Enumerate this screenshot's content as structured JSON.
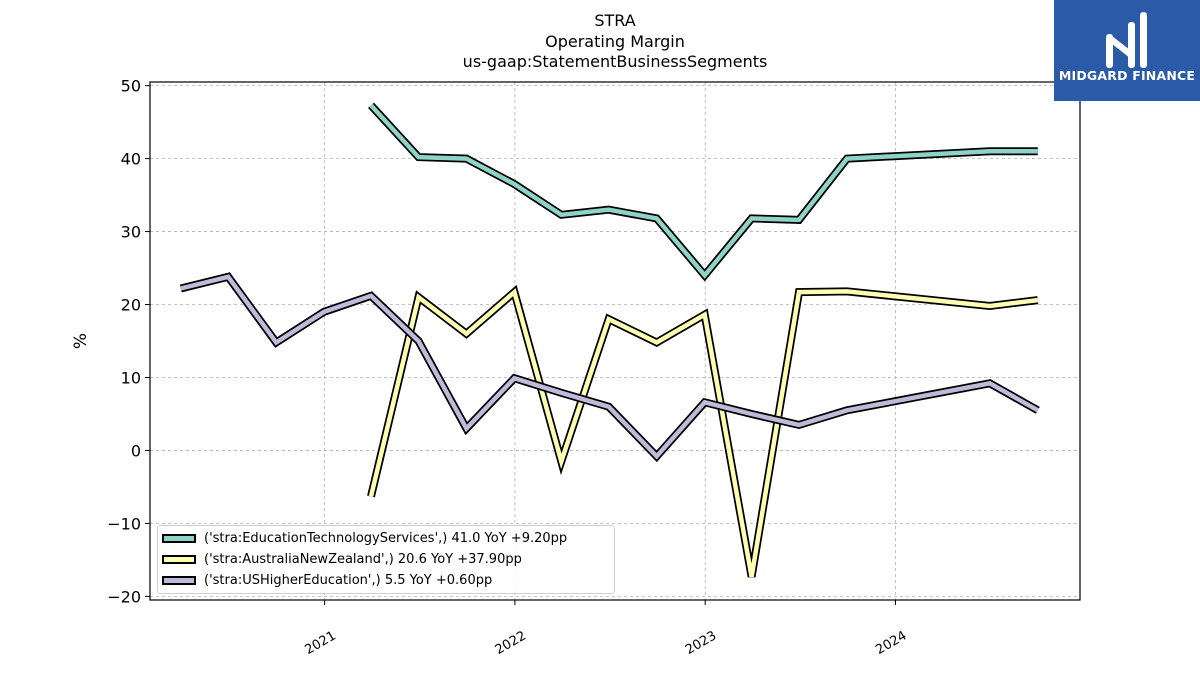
{
  "chart_data": {
    "type": "line",
    "title_lines": [
      "STRA",
      "Operating Margin",
      "us-gaap:StatementBusinessSegments"
    ],
    "ylabel": "%",
    "xlabel": "",
    "ylim": [
      -20.5,
      50.5
    ],
    "yticks": [
      -20,
      -10,
      0,
      10,
      20,
      30,
      40,
      50
    ],
    "ytick_labels": [
      "−20",
      "−10",
      "0",
      "10",
      "20",
      "30",
      "40",
      "50"
    ],
    "xlim": [
      "2020-02-01",
      "2024-12-20"
    ],
    "xticks": [
      "2021-01-01",
      "2022-01-01",
      "2023-01-01",
      "2024-01-01"
    ],
    "xtick_labels": [
      "2021",
      "2022",
      "2023",
      "2024"
    ],
    "grid": true,
    "legend_placement": "lower-left",
    "series": [
      {
        "name": "('stra:EducationTechnologyServices',) 41.0 YoY +9.20pp",
        "color": "#8dd3c7",
        "x": [
          "2021-03-31",
          "2021-06-30",
          "2021-09-30",
          "2021-12-31",
          "2022-03-31",
          "2022-06-30",
          "2022-09-30",
          "2022-12-31",
          "2023-03-31",
          "2023-06-30",
          "2023-09-30",
          "2024-06-30",
          "2024-09-30"
        ],
        "y": [
          47.3,
          40.2,
          40.0,
          36.5,
          32.3,
          33.0,
          31.8,
          24.0,
          31.8,
          31.6,
          40.0,
          41.0,
          41.0
        ]
      },
      {
        "name": "('stra:AustraliaNewZealand',) 20.6 YoY +37.90pp",
        "color": "#ffffb3",
        "x": [
          "2021-03-31",
          "2021-06-30",
          "2021-09-30",
          "2021-12-31",
          "2022-03-31",
          "2022-06-30",
          "2022-09-30",
          "2022-12-31",
          "2023-03-31",
          "2023-06-30",
          "2023-09-30",
          "2024-06-30",
          "2024-09-30"
        ],
        "y": [
          -6.3,
          21.0,
          16.0,
          21.7,
          -1.5,
          18.0,
          14.8,
          18.6,
          -17.3,
          21.7,
          21.8,
          19.8,
          20.6
        ]
      },
      {
        "name": "('stra:USHigherEducation',) 5.5 YoY +0.60pp",
        "color": "#bebada",
        "x": [
          "2020-03-31",
          "2020-06-30",
          "2020-09-30",
          "2020-12-31",
          "2021-03-31",
          "2021-06-30",
          "2021-09-30",
          "2021-12-31",
          "2022-03-31",
          "2022-06-30",
          "2022-09-30",
          "2022-12-31",
          "2023-03-31",
          "2023-06-30",
          "2023-09-30",
          "2024-06-30",
          "2024-09-30"
        ],
        "y": [
          22.2,
          23.8,
          14.8,
          19.0,
          21.2,
          15.0,
          3.0,
          9.9,
          7.9,
          6.0,
          -0.8,
          6.6,
          5.0,
          3.5,
          5.5,
          9.2,
          5.5
        ]
      }
    ]
  },
  "logo": {
    "text": "MIDGARD FINANCE",
    "color": "#2a5aa8"
  }
}
